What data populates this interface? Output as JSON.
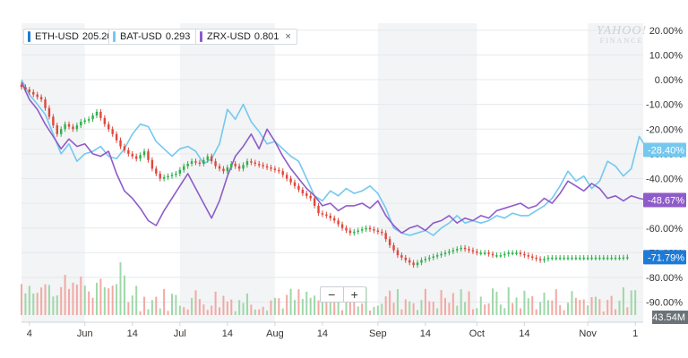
{
  "chart_data": {
    "type": "line",
    "watermark": {
      "brand": "YAHOO!",
      "sub": "FINANCE"
    },
    "legend": [
      {
        "symbol": "ETH-USD",
        "price": "205.200",
        "color": "#1f7ad6",
        "closable": false
      },
      {
        "symbol": "BAT-USD",
        "price": "0.293",
        "color": "#74c8ef",
        "closable": true,
        "close_glyph": "×"
      },
      {
        "symbol": "ZRX-USD",
        "price": "0.801",
        "color": "#8e5bc8",
        "closable": true,
        "close_glyph": "×"
      }
    ],
    "y_axis": {
      "ticks": [
        "20.00%",
        "10.00%",
        "0.00%",
        "-10.00%",
        "-20.00%",
        "-30.00%",
        "-40.00%",
        "-50.00%",
        "-60.00%",
        "-70.00%",
        "-80.00%",
        "-90.00%"
      ],
      "tick_values": [
        20,
        10,
        0,
        -10,
        -20,
        -30,
        -40,
        -50,
        -60,
        -70,
        -80,
        -90
      ],
      "range": [
        -94,
        22
      ],
      "unit": "percent change"
    },
    "x_axis": {
      "labels": [
        "4",
        "Jun",
        "14",
        "Jul",
        "14",
        "Aug",
        "14",
        "Sep",
        "14",
        "Oct",
        "14",
        "Nov",
        "1"
      ],
      "label_days": [
        4,
        32,
        56,
        80,
        104,
        128,
        152,
        180,
        204,
        230,
        254,
        286,
        310
      ],
      "range_days": [
        0,
        314
      ],
      "month_start_days": [
        32,
        80,
        128,
        180,
        230,
        286
      ]
    },
    "value_tags": [
      {
        "text": "-28.40%",
        "value": -28.4,
        "color": "#74c8ef"
      },
      {
        "text": "-48.67%",
        "value": -48.67,
        "color": "#8e5bc8"
      },
      {
        "text": "-71.79%",
        "value": -71.79,
        "color": "#1f7ad6"
      }
    ],
    "volume_label": "43.54M",
    "zoom_controls": {
      "minus": "−",
      "plus": "+"
    },
    "series": [
      {
        "name": "BAT-USD",
        "color": "#74c8ef",
        "points": [
          [
            0,
            0
          ],
          [
            4,
            -6
          ],
          [
            8,
            -10
          ],
          [
            12,
            -14
          ],
          [
            16,
            -22
          ],
          [
            20,
            -30
          ],
          [
            24,
            -26
          ],
          [
            28,
            -33
          ],
          [
            32,
            -30
          ],
          [
            36,
            -29
          ],
          [
            40,
            -27
          ],
          [
            44,
            -31
          ],
          [
            48,
            -32
          ],
          [
            52,
            -28
          ],
          [
            56,
            -22
          ],
          [
            60,
            -18
          ],
          [
            64,
            -19
          ],
          [
            68,
            -25
          ],
          [
            72,
            -28
          ],
          [
            76,
            -31
          ],
          [
            80,
            -28
          ],
          [
            84,
            -27
          ],
          [
            88,
            -29
          ],
          [
            92,
            -34
          ],
          [
            96,
            -32
          ],
          [
            100,
            -26
          ],
          [
            104,
            -12
          ],
          [
            108,
            -16
          ],
          [
            112,
            -10
          ],
          [
            116,
            -17
          ],
          [
            120,
            -21
          ],
          [
            124,
            -26
          ],
          [
            128,
            -25
          ],
          [
            132,
            -28
          ],
          [
            136,
            -31
          ],
          [
            140,
            -33
          ],
          [
            144,
            -40
          ],
          [
            148,
            -47
          ],
          [
            152,
            -49
          ],
          [
            156,
            -45
          ],
          [
            160,
            -47
          ],
          [
            164,
            -44
          ],
          [
            168,
            -46
          ],
          [
            172,
            -45
          ],
          [
            176,
            -43
          ],
          [
            180,
            -46
          ],
          [
            184,
            -52
          ],
          [
            188,
            -60
          ],
          [
            192,
            -62
          ],
          [
            196,
            -63
          ],
          [
            200,
            -62
          ],
          [
            204,
            -61
          ],
          [
            208,
            -63
          ],
          [
            212,
            -60
          ],
          [
            216,
            -58
          ],
          [
            220,
            -55
          ],
          [
            224,
            -58
          ],
          [
            228,
            -57
          ],
          [
            232,
            -58
          ],
          [
            236,
            -57
          ],
          [
            240,
            -55
          ],
          [
            244,
            -56
          ],
          [
            248,
            -54
          ],
          [
            252,
            -55
          ],
          [
            256,
            -55
          ],
          [
            260,
            -53
          ],
          [
            264,
            -51
          ],
          [
            268,
            -48
          ],
          [
            272,
            -43
          ],
          [
            276,
            -37
          ],
          [
            280,
            -41
          ],
          [
            284,
            -39
          ],
          [
            288,
            -44
          ],
          [
            292,
            -41
          ],
          [
            296,
            -33
          ],
          [
            300,
            -35
          ],
          [
            304,
            -39
          ],
          [
            308,
            -36
          ],
          [
            312,
            -23
          ],
          [
            316,
            -28
          ]
        ]
      },
      {
        "name": "ZRX-USD",
        "color": "#8e5bc8",
        "points": [
          [
            0,
            -1
          ],
          [
            4,
            -8
          ],
          [
            8,
            -12
          ],
          [
            12,
            -18
          ],
          [
            16,
            -23
          ],
          [
            20,
            -28
          ],
          [
            24,
            -24
          ],
          [
            28,
            -27
          ],
          [
            32,
            -26
          ],
          [
            36,
            -30
          ],
          [
            40,
            -31
          ],
          [
            44,
            -29
          ],
          [
            48,
            -38
          ],
          [
            52,
            -45
          ],
          [
            56,
            -48
          ],
          [
            60,
            -52
          ],
          [
            64,
            -57
          ],
          [
            68,
            -59
          ],
          [
            72,
            -53
          ],
          [
            76,
            -48
          ],
          [
            80,
            -43
          ],
          [
            84,
            -38
          ],
          [
            88,
            -44
          ],
          [
            92,
            -50
          ],
          [
            96,
            -56
          ],
          [
            100,
            -49
          ],
          [
            104,
            -39
          ],
          [
            108,
            -31
          ],
          [
            112,
            -27
          ],
          [
            116,
            -22
          ],
          [
            120,
            -28
          ],
          [
            124,
            -20
          ],
          [
            128,
            -25
          ],
          [
            132,
            -31
          ],
          [
            136,
            -36
          ],
          [
            140,
            -40
          ],
          [
            144,
            -44
          ],
          [
            148,
            -47
          ],
          [
            152,
            -51
          ],
          [
            156,
            -50
          ],
          [
            160,
            -53
          ],
          [
            164,
            -51
          ],
          [
            168,
            -51
          ],
          [
            172,
            -50
          ],
          [
            176,
            -52
          ],
          [
            180,
            -49
          ],
          [
            184,
            -55
          ],
          [
            188,
            -59
          ],
          [
            192,
            -62
          ],
          [
            196,
            -60
          ],
          [
            200,
            -59
          ],
          [
            204,
            -61
          ],
          [
            208,
            -58
          ],
          [
            212,
            -57
          ],
          [
            216,
            -55
          ],
          [
            220,
            -58
          ],
          [
            224,
            -56
          ],
          [
            228,
            -57
          ],
          [
            232,
            -55
          ],
          [
            236,
            -56
          ],
          [
            240,
            -53
          ],
          [
            244,
            -52
          ],
          [
            248,
            -51
          ],
          [
            252,
            -50
          ],
          [
            256,
            -52
          ],
          [
            260,
            -51
          ],
          [
            264,
            -48
          ],
          [
            268,
            -50
          ],
          [
            272,
            -46
          ],
          [
            276,
            -41
          ],
          [
            280,
            -43
          ],
          [
            284,
            -45
          ],
          [
            288,
            -42
          ],
          [
            292,
            -44
          ],
          [
            296,
            -48
          ],
          [
            300,
            -47
          ],
          [
            304,
            -49
          ],
          [
            308,
            -47
          ],
          [
            312,
            -48
          ],
          [
            316,
            -48.7
          ]
        ]
      },
      {
        "name": "ETH-USD",
        "color": "#1f7ad6",
        "style": "candlestick",
        "up_color": "#2bb14a",
        "down_color": "#e0473b",
        "points": [
          [
            0,
            -2
          ],
          [
            4,
            -4
          ],
          [
            8,
            -6
          ],
          [
            12,
            -8
          ],
          [
            16,
            -15
          ],
          [
            20,
            -22
          ],
          [
            24,
            -18
          ],
          [
            28,
            -20
          ],
          [
            32,
            -17
          ],
          [
            36,
            -16
          ],
          [
            40,
            -13
          ],
          [
            44,
            -18
          ],
          [
            48,
            -22
          ],
          [
            52,
            -27
          ],
          [
            56,
            -30
          ],
          [
            60,
            -32
          ],
          [
            64,
            -29
          ],
          [
            68,
            -36
          ],
          [
            72,
            -40
          ],
          [
            76,
            -39
          ],
          [
            80,
            -38
          ],
          [
            84,
            -35
          ],
          [
            88,
            -33
          ],
          [
            92,
            -34
          ],
          [
            96,
            -31
          ],
          [
            100,
            -35
          ],
          [
            104,
            -37
          ],
          [
            108,
            -34
          ],
          [
            112,
            -36
          ],
          [
            116,
            -33
          ],
          [
            120,
            -34
          ],
          [
            124,
            -35
          ],
          [
            128,
            -36
          ],
          [
            132,
            -37
          ],
          [
            136,
            -40
          ],
          [
            140,
            -43
          ],
          [
            144,
            -46
          ],
          [
            148,
            -48
          ],
          [
            152,
            -54
          ],
          [
            156,
            -55
          ],
          [
            160,
            -57
          ],
          [
            164,
            -60
          ],
          [
            168,
            -62
          ],
          [
            172,
            -61
          ],
          [
            176,
            -60
          ],
          [
            180,
            -61
          ],
          [
            184,
            -62
          ],
          [
            188,
            -67
          ],
          [
            192,
            -71
          ],
          [
            196,
            -73
          ],
          [
            200,
            -75
          ],
          [
            204,
            -73
          ],
          [
            208,
            -72
          ],
          [
            212,
            -71
          ],
          [
            216,
            -70
          ],
          [
            220,
            -69
          ],
          [
            224,
            -68
          ],
          [
            228,
            -69
          ],
          [
            232,
            -70
          ],
          [
            236,
            -70
          ],
          [
            240,
            -71
          ],
          [
            244,
            -71
          ],
          [
            248,
            -70
          ],
          [
            252,
            -70
          ],
          [
            256,
            -71
          ],
          [
            260,
            -72
          ],
          [
            264,
            -73
          ],
          [
            268,
            -72
          ],
          [
            272,
            -72
          ],
          [
            276,
            -72
          ],
          [
            280,
            -72
          ],
          [
            284,
            -72
          ],
          [
            288,
            -72
          ],
          [
            292,
            -72
          ],
          [
            296,
            -72
          ],
          [
            300,
            -72
          ],
          [
            304,
            -72
          ],
          [
            308,
            -71.79
          ]
        ]
      }
    ]
  }
}
